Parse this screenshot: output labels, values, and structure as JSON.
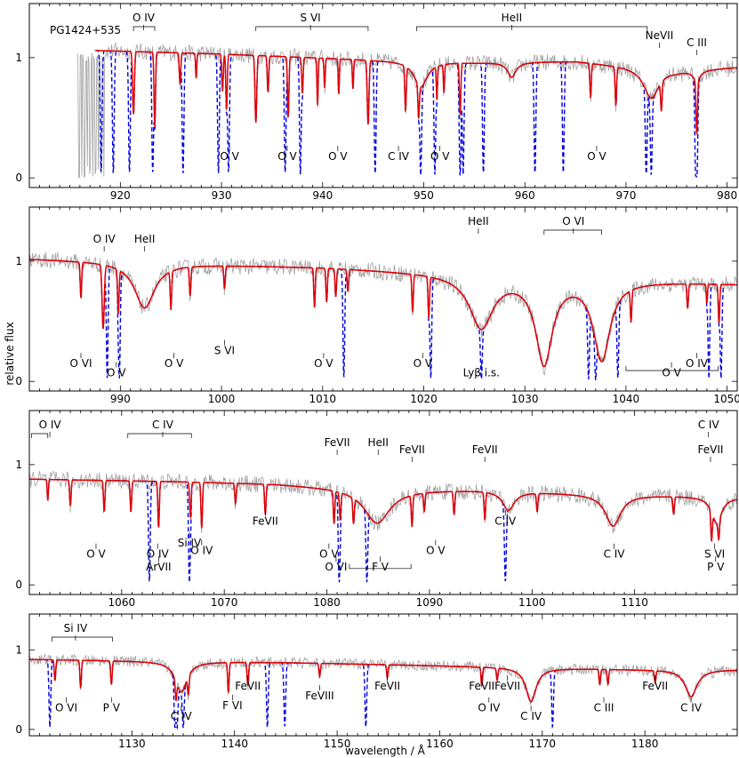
{
  "chart_data": {
    "type": "line",
    "object_label": "PG1424+535",
    "xlabel": "wavelength / Å",
    "ylabel": "relative flux",
    "series": [
      {
        "name": "observed",
        "color": "#a0a0a0"
      },
      {
        "name": "model",
        "color": "#e00000"
      },
      {
        "name": "model_ism",
        "color": "#0000e0"
      }
    ],
    "panels": [
      {
        "xlim": [
          911,
          981
        ],
        "ylim": [
          -0.08,
          1.45
        ],
        "xticks": [
          920,
          930,
          940,
          950,
          960,
          970,
          980
        ],
        "yticks": [
          0,
          1
        ],
        "obs_start": 915.8,
        "continuum": [
          [
            917.5,
            1.06
          ],
          [
            930,
            1.03
          ],
          [
            945,
            0.98
          ],
          [
            955,
            0.96
          ],
          [
            965,
            0.97
          ],
          [
            975,
            0.89
          ],
          [
            981,
            0.92
          ]
        ],
        "broad_lines": [
          [
            949.7,
            0.22,
            0.8
          ],
          [
            958.7,
            0.13,
            0.5
          ],
          [
            972.5,
            0.27,
            0.9
          ],
          [
            977.0,
            0.1,
            0.4
          ]
        ],
        "lines": [
          [
            921.3,
            0.5,
            0.12
          ],
          [
            923.4,
            0.6,
            0.1
          ],
          [
            930.5,
            0.45,
            0.1
          ],
          [
            933.4,
            0.55,
            0.12
          ],
          [
            936.6,
            0.5,
            0.1
          ],
          [
            938.0,
            0.3,
            0.1
          ],
          [
            939.5,
            0.4,
            0.08
          ],
          [
            944.5,
            0.55,
            0.12
          ],
          [
            948.2,
            0.4,
            0.1
          ],
          [
            949.5,
            0.35,
            0.1
          ],
          [
            951.3,
            0.3,
            0.08
          ],
          [
            952.0,
            0.25,
            0.08
          ],
          [
            953.6,
            0.45,
            0.1
          ],
          [
            966.5,
            0.3,
            0.1
          ],
          [
            969.0,
            0.35,
            0.1
          ],
          [
            973.5,
            0.3,
            0.1
          ],
          [
            977.0,
            0.55,
            0.1
          ],
          [
            930.1,
            0.3,
            0.1
          ],
          [
            925.9,
            0.25,
            0.1
          ],
          [
            934.6,
            0.3,
            0.1
          ],
          [
            940.2,
            0.25,
            0.08
          ],
          [
            941.6,
            0.3,
            0.08
          ],
          [
            943.0,
            0.25,
            0.08
          ],
          [
            927.5,
            0.2,
            0.08
          ]
        ],
        "ism_lines": [
          918.1,
          919.3,
          920.9,
          923.2,
          926.2,
          930.7,
          937.8,
          949.7,
          953.6,
          953.9,
          963.8,
          972.5,
          977.0,
          972.0,
          976.9,
          929.7,
          936.3,
          945.2,
          951.1,
          955.9,
          961.0
        ],
        "labels": [
          {
            "text": "O IV",
            "x": 922.3,
            "row": "top1"
          },
          {
            "text": "S VI",
            "x": 938.8,
            "row": "top1"
          },
          {
            "text": "HeII",
            "x": 958.7,
            "row": "top1"
          },
          {
            "text": "NeVII",
            "x": 973.3,
            "row": "top2"
          },
          {
            "text": "C III",
            "x": 977.0,
            "row": "top2b"
          },
          {
            "text": "O V",
            "x": 930.8,
            "row": "bottom"
          },
          {
            "text": "O V",
            "x": 936.5,
            "row": "bottom"
          },
          {
            "text": "O V",
            "x": 941.5,
            "row": "bottom"
          },
          {
            "text": "C IV",
            "x": 947.5,
            "row": "bottom"
          },
          {
            "text": "O V",
            "x": 951.6,
            "row": "bottom"
          },
          {
            "text": "O V",
            "x": 967.1,
            "row": "bottom"
          }
        ],
        "brackets": [
          [
            921.3,
            923.4,
            "top1"
          ],
          [
            933.4,
            944.5,
            "top1"
          ],
          [
            949.3,
            972.1,
            "top1"
          ]
        ]
      },
      {
        "xlim": [
          981,
          1051
        ],
        "ylim": [
          -0.08,
          1.45
        ],
        "xticks": [
          990,
          1000,
          1010,
          1020,
          1030,
          1040,
          1050
        ],
        "yticks": [
          0,
          1
        ],
        "obs_start": 981,
        "continuum": [
          [
            981,
            1.02
          ],
          [
            995,
            0.98
          ],
          [
            1010,
            0.95
          ],
          [
            1020,
            0.91
          ],
          [
            1030,
            0.87
          ],
          [
            1040,
            0.84
          ],
          [
            1051,
            0.81
          ]
        ],
        "broad_lines": [
          [
            992.4,
            0.38,
            1.2
          ],
          [
            1025.7,
            0.5,
            1.4
          ],
          [
            1031.9,
            0.85,
            1.0
          ],
          [
            1037.6,
            0.8,
            1.0
          ]
        ],
        "lines": [
          [
            986.1,
            0.3,
            0.1
          ],
          [
            988.3,
            0.55,
            0.15
          ],
          [
            989.8,
            0.4,
            0.1
          ],
          [
            995.0,
            0.35,
            0.1
          ],
          [
            996.9,
            0.25,
            0.1
          ],
          [
            1000.3,
            0.2,
            0.1
          ],
          [
            1009.2,
            0.35,
            0.1
          ],
          [
            1010.4,
            0.3,
            0.1
          ],
          [
            1011.3,
            0.25,
            0.1
          ],
          [
            1012.5,
            0.2,
            0.1
          ],
          [
            1018.9,
            0.35,
            0.1
          ],
          [
            1020.5,
            0.4,
            0.1
          ],
          [
            1040.5,
            0.35,
            0.1
          ],
          [
            1046.1,
            0.25,
            0.1
          ],
          [
            1049.2,
            0.4,
            0.1
          ],
          [
            1048.0,
            0.2,
            0.08
          ]
        ],
        "ism_lines": [
          988.7,
          989.9,
          1020.7,
          1025.7,
          1036.3,
          1037.0,
          1039.2,
          1048.2,
          1049.4,
          1012.1
        ],
        "labels": [
          {
            "text": "O IV",
            "x": 988.4,
            "row": "top2"
          },
          {
            "text": "HeII",
            "x": 992.4,
            "row": "top2"
          },
          {
            "text": "HeII",
            "x": 1025.4,
            "row": "top1"
          },
          {
            "text": "O VI",
            "x": 1034.8,
            "row": "top1"
          },
          {
            "text": "O VI",
            "x": 986.1,
            "row": "bottom2"
          },
          {
            "text": "O V",
            "x": 989.6,
            "row": "bottom3"
          },
          {
            "text": "O V",
            "x": 995.3,
            "row": "bottom2"
          },
          {
            "text": "S VI",
            "x": 1000.3,
            "row": "bottom1"
          },
          {
            "text": "O V",
            "x": 1010.1,
            "row": "bottom2"
          },
          {
            "text": "O V",
            "x": 1019.9,
            "row": "bottom2"
          },
          {
            "text": "Lyβ i.s.",
            "x": 1025.7,
            "row": "bottom3"
          },
          {
            "text": "O IV",
            "x": 1047.0,
            "row": "bottom2"
          },
          {
            "text": "O V",
            "x": 1044.5,
            "row": "bottom3"
          }
        ],
        "brackets": [
          [
            1031.9,
            1037.6,
            "top1"
          ],
          [
            1040.0,
            1049.1,
            "bottom3b"
          ]
        ]
      },
      {
        "xlim": [
          1051,
          1120
        ],
        "ylim": [
          -0.08,
          1.45
        ],
        "xticks": [
          1060,
          1070,
          1080,
          1090,
          1100,
          1110
        ],
        "yticks": [
          0,
          1
        ],
        "obs_start": 1051,
        "continuum": [
          [
            1051,
            0.88
          ],
          [
            1065,
            0.86
          ],
          [
            1075,
            0.84
          ],
          [
            1085,
            0.79
          ],
          [
            1095,
            0.79
          ],
          [
            1105,
            0.76
          ],
          [
            1120,
            0.73
          ]
        ],
        "broad_lines": [
          [
            1084.9,
            0.35,
            1.5
          ],
          [
            1097.7,
            0.2,
            0.7
          ],
          [
            1107.9,
            0.35,
            0.9
          ],
          [
            1118.0,
            0.3,
            0.6
          ]
        ],
        "lines": [
          [
            1052.8,
            0.2,
            0.08
          ],
          [
            1055.0,
            0.25,
            0.1
          ],
          [
            1058.3,
            0.3,
            0.1
          ],
          [
            1060.9,
            0.3,
            0.1
          ],
          [
            1063.6,
            0.45,
            0.1
          ],
          [
            1066.7,
            0.35,
            0.1
          ],
          [
            1067.8,
            0.45,
            0.1
          ],
          [
            1071.1,
            0.2,
            0.1
          ],
          [
            1074.0,
            0.3,
            0.1
          ],
          [
            1080.7,
            0.35,
            0.1
          ],
          [
            1081.3,
            0.3,
            0.1
          ],
          [
            1082.6,
            0.3,
            0.1
          ],
          [
            1088.3,
            0.35,
            0.1
          ],
          [
            1089.5,
            0.2,
            0.1
          ],
          [
            1092.4,
            0.25,
            0.1
          ],
          [
            1095.4,
            0.3,
            0.1
          ],
          [
            1100.5,
            0.2,
            0.1
          ],
          [
            1113.8,
            0.2,
            0.1
          ],
          [
            1117.5,
            0.4,
            0.1
          ],
          [
            1118.2,
            0.3,
            0.1
          ]
        ],
        "ism_lines": [
          1062.7,
          1066.6,
          1081.2,
          1097.4,
          1083.9
        ],
        "labels": [
          {
            "text": "O IV",
            "x": 1053.0,
            "row": "top1"
          },
          {
            "text": "C IV",
            "x": 1064.0,
            "row": "top1"
          },
          {
            "text": "FeVII",
            "x": 1081.0,
            "row": "top2"
          },
          {
            "text": "HeII",
            "x": 1085.0,
            "row": "top2"
          },
          {
            "text": "FeVII",
            "x": 1088.3,
            "row": "top2b"
          },
          {
            "text": "FeVII",
            "x": 1095.4,
            "row": "top2b"
          },
          {
            "text": "C IV",
            "x": 1117.2,
            "row": "top1"
          },
          {
            "text": "FeVII",
            "x": 1117.4,
            "row": "top2b"
          },
          {
            "text": "FeVII",
            "x": 1074.0,
            "row": "mid"
          },
          {
            "text": "C IV",
            "x": 1097.4,
            "row": "mid"
          },
          {
            "text": "O V",
            "x": 1057.5,
            "row": "bottom1"
          },
          {
            "text": "O IV",
            "x": 1063.5,
            "row": "bottom1"
          },
          {
            "text": "ArVII",
            "x": 1063.6,
            "row": "bottom2"
          },
          {
            "text": "Si IV",
            "x": 1066.6,
            "row": "bottom1b"
          },
          {
            "text": "O IV",
            "x": 1067.8,
            "row": "bottom1c"
          },
          {
            "text": "O V",
            "x": 1080.2,
            "row": "bottom1"
          },
          {
            "text": "O VI",
            "x": 1080.9,
            "row": "bottom2"
          },
          {
            "text": "F V",
            "x": 1085.2,
            "row": "bottom2"
          },
          {
            "text": "O V",
            "x": 1090.6,
            "row": "bottom1c"
          },
          {
            "text": "C IV",
            "x": 1108.0,
            "row": "bottom1"
          },
          {
            "text": "S VI",
            "x": 1117.8,
            "row": "bottom1"
          },
          {
            "text": "P V",
            "x": 1117.9,
            "row": "bottom2"
          }
        ],
        "brackets": [
          [
            1051.2,
            1052.8,
            "top1"
          ],
          [
            1060.6,
            1066.8,
            "top1"
          ],
          [
            1082.2,
            1088.2,
            "bottom2b"
          ]
        ]
      },
      {
        "xlim": [
          1120,
          1189
        ],
        "ylim": [
          -0.08,
          1.45
        ],
        "xticks": [
          1130,
          1140,
          1150,
          1160,
          1170,
          1180
        ],
        "yticks": [
          0,
          1
        ],
        "obs_start": 1120,
        "continuum": [
          [
            1120,
            0.88
          ],
          [
            1130,
            0.86
          ],
          [
            1145,
            0.84
          ],
          [
            1160,
            0.8
          ],
          [
            1170,
            0.77
          ],
          [
            1180,
            0.75
          ],
          [
            1189,
            0.75
          ]
        ],
        "broad_lines": [
          [
            1134.8,
            0.45,
            0.7
          ],
          [
            1168.9,
            0.55,
            0.6
          ],
          [
            1184.5,
            0.45,
            0.7
          ]
        ],
        "lines": [
          [
            1122.5,
            0.3,
            0.1
          ],
          [
            1125.0,
            0.4,
            0.1
          ],
          [
            1128.0,
            0.35,
            0.1
          ],
          [
            1134.3,
            0.4,
            0.1
          ],
          [
            1135.5,
            0.35,
            0.1
          ],
          [
            1139.4,
            0.45,
            0.1
          ],
          [
            1141.3,
            0.35,
            0.1
          ],
          [
            1148.3,
            0.2,
            0.1
          ],
          [
            1154.9,
            0.2,
            0.1
          ],
          [
            1164.1,
            0.3,
            0.1
          ],
          [
            1165.6,
            0.2,
            0.1
          ],
          [
            1175.6,
            0.25,
            0.1
          ],
          [
            1176.4,
            0.25,
            0.1
          ],
          [
            1181.0,
            0.2,
            0.1
          ]
        ],
        "ism_lines": [
          1122.0,
          1134.2,
          1134.4,
          1135.0,
          1143.2,
          1144.9,
          1152.8,
          1171.0
        ],
        "labels": [
          {
            "text": "Si IV",
            "x": 1124.5,
            "row": "top1"
          },
          {
            "text": "O VI",
            "x": 1123.6,
            "row": "bottom1"
          },
          {
            "text": "P V",
            "x": 1128.0,
            "row": "bottom1"
          },
          {
            "text": "C IV",
            "x": 1134.8,
            "row": "bottom2"
          },
          {
            "text": "F VI",
            "x": 1139.8,
            "row": "bottom1c"
          },
          {
            "text": "FeVII",
            "x": 1141.3,
            "row": "mid"
          },
          {
            "text": "FeVIII",
            "x": 1148.3,
            "row": "mid2"
          },
          {
            "text": "FeVII",
            "x": 1154.9,
            "row": "mid"
          },
          {
            "text": "FeVII",
            "x": 1164.1,
            "row": "mid"
          },
          {
            "text": "FeVII",
            "x": 1166.6,
            "row": "mid"
          },
          {
            "text": "O IV",
            "x": 1164.8,
            "row": "bottom1"
          },
          {
            "text": "C IV",
            "x": 1168.9,
            "row": "bottom2"
          },
          {
            "text": "C III",
            "x": 1176.0,
            "row": "bottom1"
          },
          {
            "text": "FeVII",
            "x": 1181.0,
            "row": "mid"
          },
          {
            "text": "C IV",
            "x": 1184.5,
            "row": "bottom1"
          }
        ],
        "brackets": [
          [
            1122.2,
            1128.1,
            "top1"
          ]
        ]
      }
    ]
  }
}
